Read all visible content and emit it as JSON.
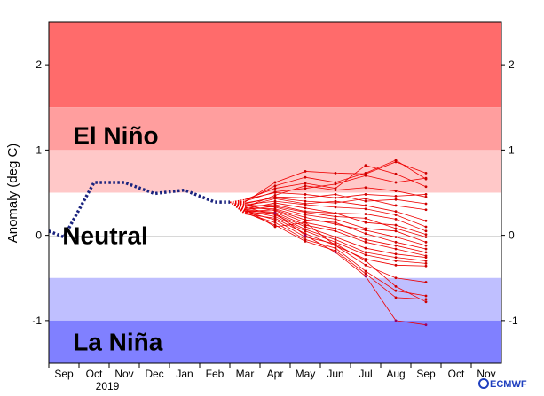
{
  "chart_data": {
    "type": "line",
    "ylabel": "Anomaly (deg C)",
    "ylim": [
      -1.5,
      2.5
    ],
    "yticks": [
      -1,
      0,
      1,
      2
    ],
    "x_ticks": [
      "Sep",
      "Oct",
      "Nov",
      "Dec",
      "Jan",
      "Feb",
      "Mar",
      "Apr",
      "May",
      "Jun",
      "Jul",
      "Aug",
      "Sep",
      "Oct",
      "Nov"
    ],
    "year_label": "2019",
    "bands": [
      {
        "label": "El Niño",
        "from": 1.5,
        "to": 2.5,
        "color": "#ff6b6b"
      },
      {
        "label": "",
        "from": 1.0,
        "to": 1.5,
        "color": "#ff9e9e"
      },
      {
        "label": "",
        "from": 0.5,
        "to": 1.0,
        "color": "#ffc8c8"
      },
      {
        "label": "Neutral",
        "from": -0.5,
        "to": 0.5,
        "color": "#ffffff"
      },
      {
        "label": "",
        "from": -1.0,
        "to": -0.5,
        "color": "#bfbfff"
      },
      {
        "label": "La Niña",
        "from": -1.5,
        "to": -1.0,
        "color": "#8080ff"
      }
    ],
    "observed": {
      "x": [
        -0.5,
        0,
        1,
        2,
        3,
        4,
        5,
        5.5
      ],
      "y": [
        0.05,
        -0.02,
        0.62,
        0.62,
        0.49,
        0.53,
        0.39,
        0.39
      ]
    },
    "forecast_start": {
      "x": 5.5,
      "y": 0.39
    },
    "forecast_months_x": [
      6,
      7,
      8,
      9,
      10,
      11,
      12
    ],
    "forecast_members": [
      [
        0.39,
        0.62,
        0.75,
        0.73,
        0.72,
        0.86,
        0.73
      ],
      [
        0.4,
        0.58,
        0.68,
        0.62,
        0.73,
        0.88,
        0.66
      ],
      [
        0.42,
        0.55,
        0.61,
        0.55,
        0.82,
        0.72,
        0.57
      ],
      [
        0.4,
        0.51,
        0.55,
        0.6,
        0.7,
        0.62,
        0.67
      ],
      [
        0.33,
        0.47,
        0.58,
        0.53,
        0.56,
        0.52,
        0.45
      ],
      [
        0.42,
        0.5,
        0.48,
        0.44,
        0.48,
        0.46,
        0.48
      ],
      [
        0.37,
        0.45,
        0.44,
        0.48,
        0.4,
        0.42,
        0.37
      ],
      [
        0.38,
        0.44,
        0.4,
        0.38,
        0.43,
        0.35,
        0.3
      ],
      [
        0.34,
        0.43,
        0.37,
        0.4,
        0.35,
        0.28,
        0.17
      ],
      [
        0.36,
        0.4,
        0.36,
        0.33,
        0.31,
        0.24,
        0.1
      ],
      [
        0.31,
        0.38,
        0.32,
        0.26,
        0.25,
        0.19,
        0.05
      ],
      [
        0.34,
        0.36,
        0.28,
        0.26,
        0.15,
        0.12,
        0.01
      ],
      [
        0.3,
        0.34,
        0.27,
        0.22,
        0.2,
        0.08,
        -0.02
      ],
      [
        0.36,
        0.33,
        0.24,
        0.19,
        0.08,
        0.05,
        -0.08
      ],
      [
        0.32,
        0.31,
        0.21,
        0.13,
        0.06,
        -0.02,
        -0.12
      ],
      [
        0.28,
        0.3,
        0.18,
        0.15,
        0.02,
        -0.08,
        -0.16
      ],
      [
        0.35,
        0.29,
        0.15,
        0.08,
        -0.05,
        -0.12,
        -0.2
      ],
      [
        0.3,
        0.27,
        0.12,
        0.05,
        -0.08,
        -0.16,
        -0.24
      ],
      [
        0.27,
        0.25,
        0.1,
        -0.02,
        -0.15,
        -0.22,
        -0.26
      ],
      [
        0.33,
        0.24,
        0.07,
        -0.05,
        -0.2,
        -0.26,
        -0.3
      ],
      [
        0.29,
        0.22,
        0.05,
        -0.08,
        -0.23,
        -0.3,
        -0.33
      ],
      [
        0.25,
        0.2,
        0.02,
        -0.12,
        -0.28,
        -0.35,
        -0.36
      ],
      [
        0.28,
        0.18,
        -0.02,
        -0.1,
        -0.3,
        -0.6,
        -0.78
      ],
      [
        0.26,
        0.15,
        -0.05,
        -0.15,
        -0.42,
        -0.65,
        -0.71
      ],
      [
        0.27,
        0.12,
        -0.07,
        -0.18,
        -0.45,
        -0.73,
        -0.75
      ],
      [
        0.31,
        0.1,
        0.15,
        -0.12,
        -0.35,
        -0.5,
        -0.55
      ],
      [
        0.29,
        0.26,
        0.0,
        -0.2,
        -0.48,
        -1.0,
        -1.05
      ]
    ]
  },
  "logo_text": "ECMWF"
}
